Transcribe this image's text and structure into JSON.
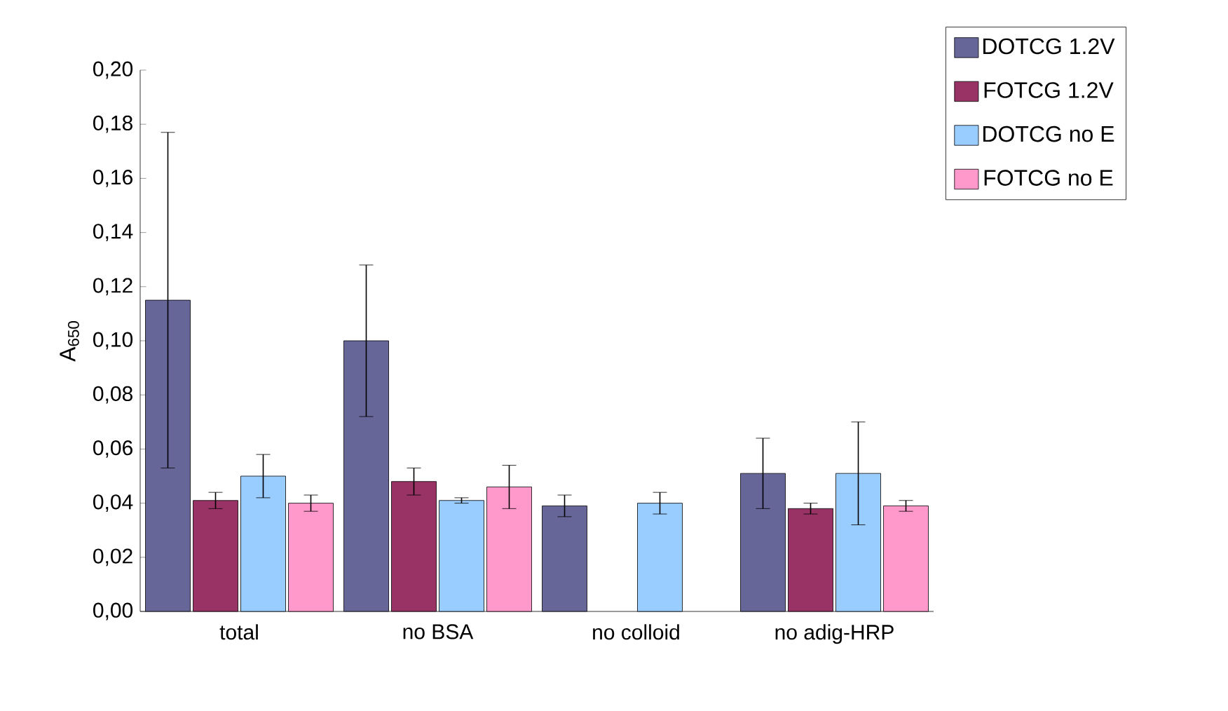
{
  "chart_data": {
    "type": "bar",
    "ylabel": "A$_{650}$",
    "categories": [
      "total",
      "no BSA",
      "no colloid",
      "no adig-HRP"
    ],
    "series": [
      {
        "name": "DOTCG 1.2V",
        "color": "#666699",
        "values": [
          0.115,
          0.1,
          0.039,
          0.051
        ],
        "errors": [
          0.062,
          0.028,
          0.004,
          0.013
        ]
      },
      {
        "name": "FOTCG 1.2V",
        "color": "#993366",
        "values": [
          0.041,
          0.048,
          null,
          0.038
        ],
        "errors": [
          0.003,
          0.005,
          null,
          0.002
        ]
      },
      {
        "name": "DOTCG no E",
        "color": "#99ccff",
        "values": [
          0.05,
          0.041,
          0.04,
          0.051
        ],
        "errors": [
          0.008,
          0.001,
          0.004,
          0.019
        ]
      },
      {
        "name": "FOTCG no E",
        "color": "#ff99cc",
        "values": [
          0.04,
          0.046,
          null,
          0.039
        ],
        "errors": [
          0.003,
          0.008,
          null,
          0.002
        ]
      }
    ],
    "ylim": [
      0,
      0.2
    ],
    "yticks": [
      {
        "value": 0,
        "label": "0,00"
      },
      {
        "value": 0.02,
        "label": "0,02"
      },
      {
        "value": 0.04,
        "label": "0,04"
      },
      {
        "value": 0.06,
        "label": "0,06"
      },
      {
        "value": 0.08,
        "label": "0,08"
      },
      {
        "value": 0.1,
        "label": "0,10"
      },
      {
        "value": 0.12,
        "label": "0,12"
      },
      {
        "value": 0.14,
        "label": "0,14"
      },
      {
        "value": 0.16,
        "label": "0,16"
      },
      {
        "value": 0.18,
        "label": "0,18"
      },
      {
        "value": 0.2,
        "label": "0,20"
      }
    ],
    "legend": "top right",
    "grid": false
  }
}
